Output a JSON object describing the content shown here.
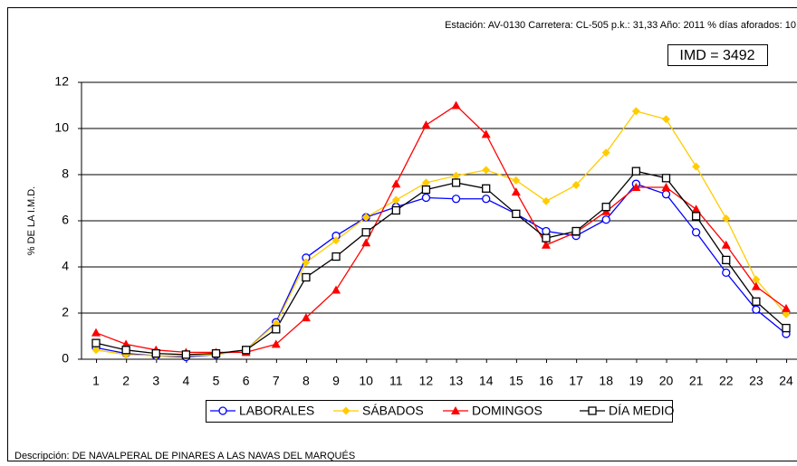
{
  "chart_data": {
    "type": "line",
    "header": "Estación: AV-0130   Carretera: CL-505   p.k.: 31,33   Año: 2011   % días aforados: 10",
    "annotation": "IMD = 3492",
    "ylabel": "% DE LA I.M.D.",
    "description": "Descripción: DE NAVALPERAL DE PINARES A LAS NAVAS DEL MARQUÉS",
    "categories": [
      1,
      2,
      3,
      4,
      5,
      6,
      7,
      8,
      9,
      10,
      11,
      12,
      13,
      14,
      15,
      16,
      17,
      18,
      19,
      20,
      21,
      22,
      23,
      24
    ],
    "ylim": [
      0,
      12
    ],
    "yticks": [
      0,
      2,
      4,
      6,
      8,
      10,
      12
    ],
    "grid": true,
    "series": [
      {
        "name": "LABORALES",
        "color": "#0000ff",
        "marker": "circle",
        "values": [
          0.5,
          0.25,
          0.15,
          0.1,
          0.2,
          0.4,
          1.6,
          4.4,
          5.35,
          6.15,
          6.6,
          7.0,
          6.95,
          6.95,
          6.3,
          5.55,
          5.35,
          6.05,
          7.6,
          7.15,
          5.5,
          3.75,
          2.15,
          1.1
        ]
      },
      {
        "name": "SÁBADOS",
        "color": "#ffcc00",
        "marker": "diamond",
        "values": [
          0.4,
          0.2,
          0.15,
          0.15,
          0.2,
          0.4,
          1.55,
          4.2,
          5.15,
          6.15,
          6.9,
          7.65,
          7.95,
          8.2,
          7.75,
          6.85,
          7.55,
          8.95,
          10.75,
          10.4,
          8.35,
          6.1,
          3.45,
          1.95
        ]
      },
      {
        "name": "DOMINGOS",
        "color": "#ff0000",
        "marker": "triangle",
        "values": [
          1.15,
          0.65,
          0.4,
          0.3,
          0.3,
          0.3,
          0.65,
          1.8,
          3.0,
          5.05,
          7.6,
          10.15,
          11.0,
          9.75,
          7.25,
          4.95,
          5.5,
          6.4,
          7.45,
          7.45,
          6.5,
          4.95,
          3.15,
          2.2
        ]
      },
      {
        "name": "DÍA MEDIO",
        "color": "#000000",
        "marker": "square",
        "values": [
          0.7,
          0.4,
          0.25,
          0.2,
          0.25,
          0.4,
          1.3,
          3.55,
          4.45,
          5.5,
          6.45,
          7.35,
          7.65,
          7.4,
          6.3,
          5.25,
          5.55,
          6.6,
          8.15,
          7.85,
          6.2,
          4.3,
          2.5,
          1.35
        ]
      }
    ]
  }
}
